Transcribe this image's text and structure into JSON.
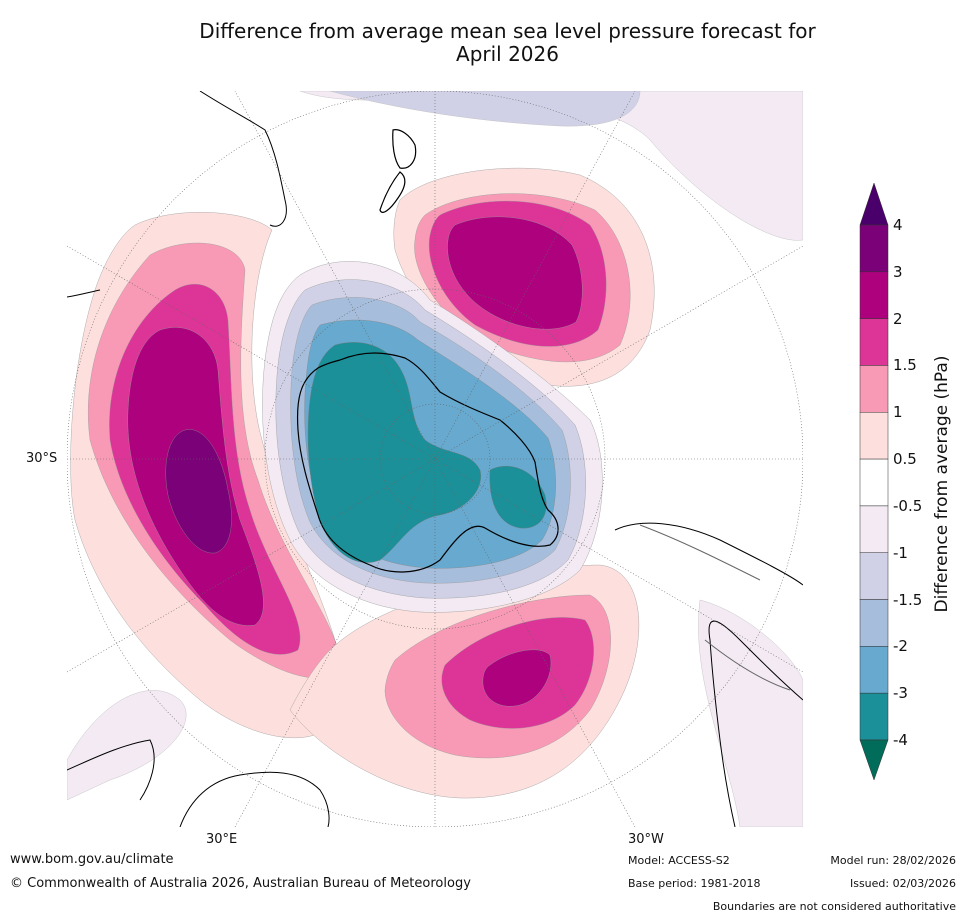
{
  "title_line1": "Difference from average mean sea level pressure forecast for",
  "title_line2": "April 2026",
  "map": {
    "projection": "south polar stereographic",
    "lat_label": "30°S",
    "lon_labels": [
      "30°E",
      "30°W"
    ]
  },
  "colorbar": {
    "title": "Difference from average (hPa)",
    "tick_labels": [
      "4",
      "3",
      "2",
      "1.5",
      "1",
      "0.5",
      "-0.5",
      "-1",
      "-1.5",
      "-2",
      "-3",
      "-4"
    ],
    "band_colors": [
      "#7a0177",
      "#ae017e",
      "#dd3497",
      "#f89ab6",
      "#fde0dd",
      "#ffffff",
      "#f3eaf3",
      "#d0d1e6",
      "#a6bddb",
      "#67a9cf",
      "#1c9099"
    ],
    "top_extend_color": "#49006a",
    "bottom_extend_color": "#016c59"
  },
  "footer": {
    "website": "www.bom.gov.au/climate",
    "copyright": "© Commonwealth of Australia 2026, Australian Bureau of Meteorology",
    "model": "Model: ACCESS-S2",
    "base_period": "Base period: 1981-2018",
    "model_run": "Model run: 28/02/2026",
    "issued": "Issued: 02/03/2026",
    "disclaimer": "Boundaries are not considered authoritative"
  }
}
